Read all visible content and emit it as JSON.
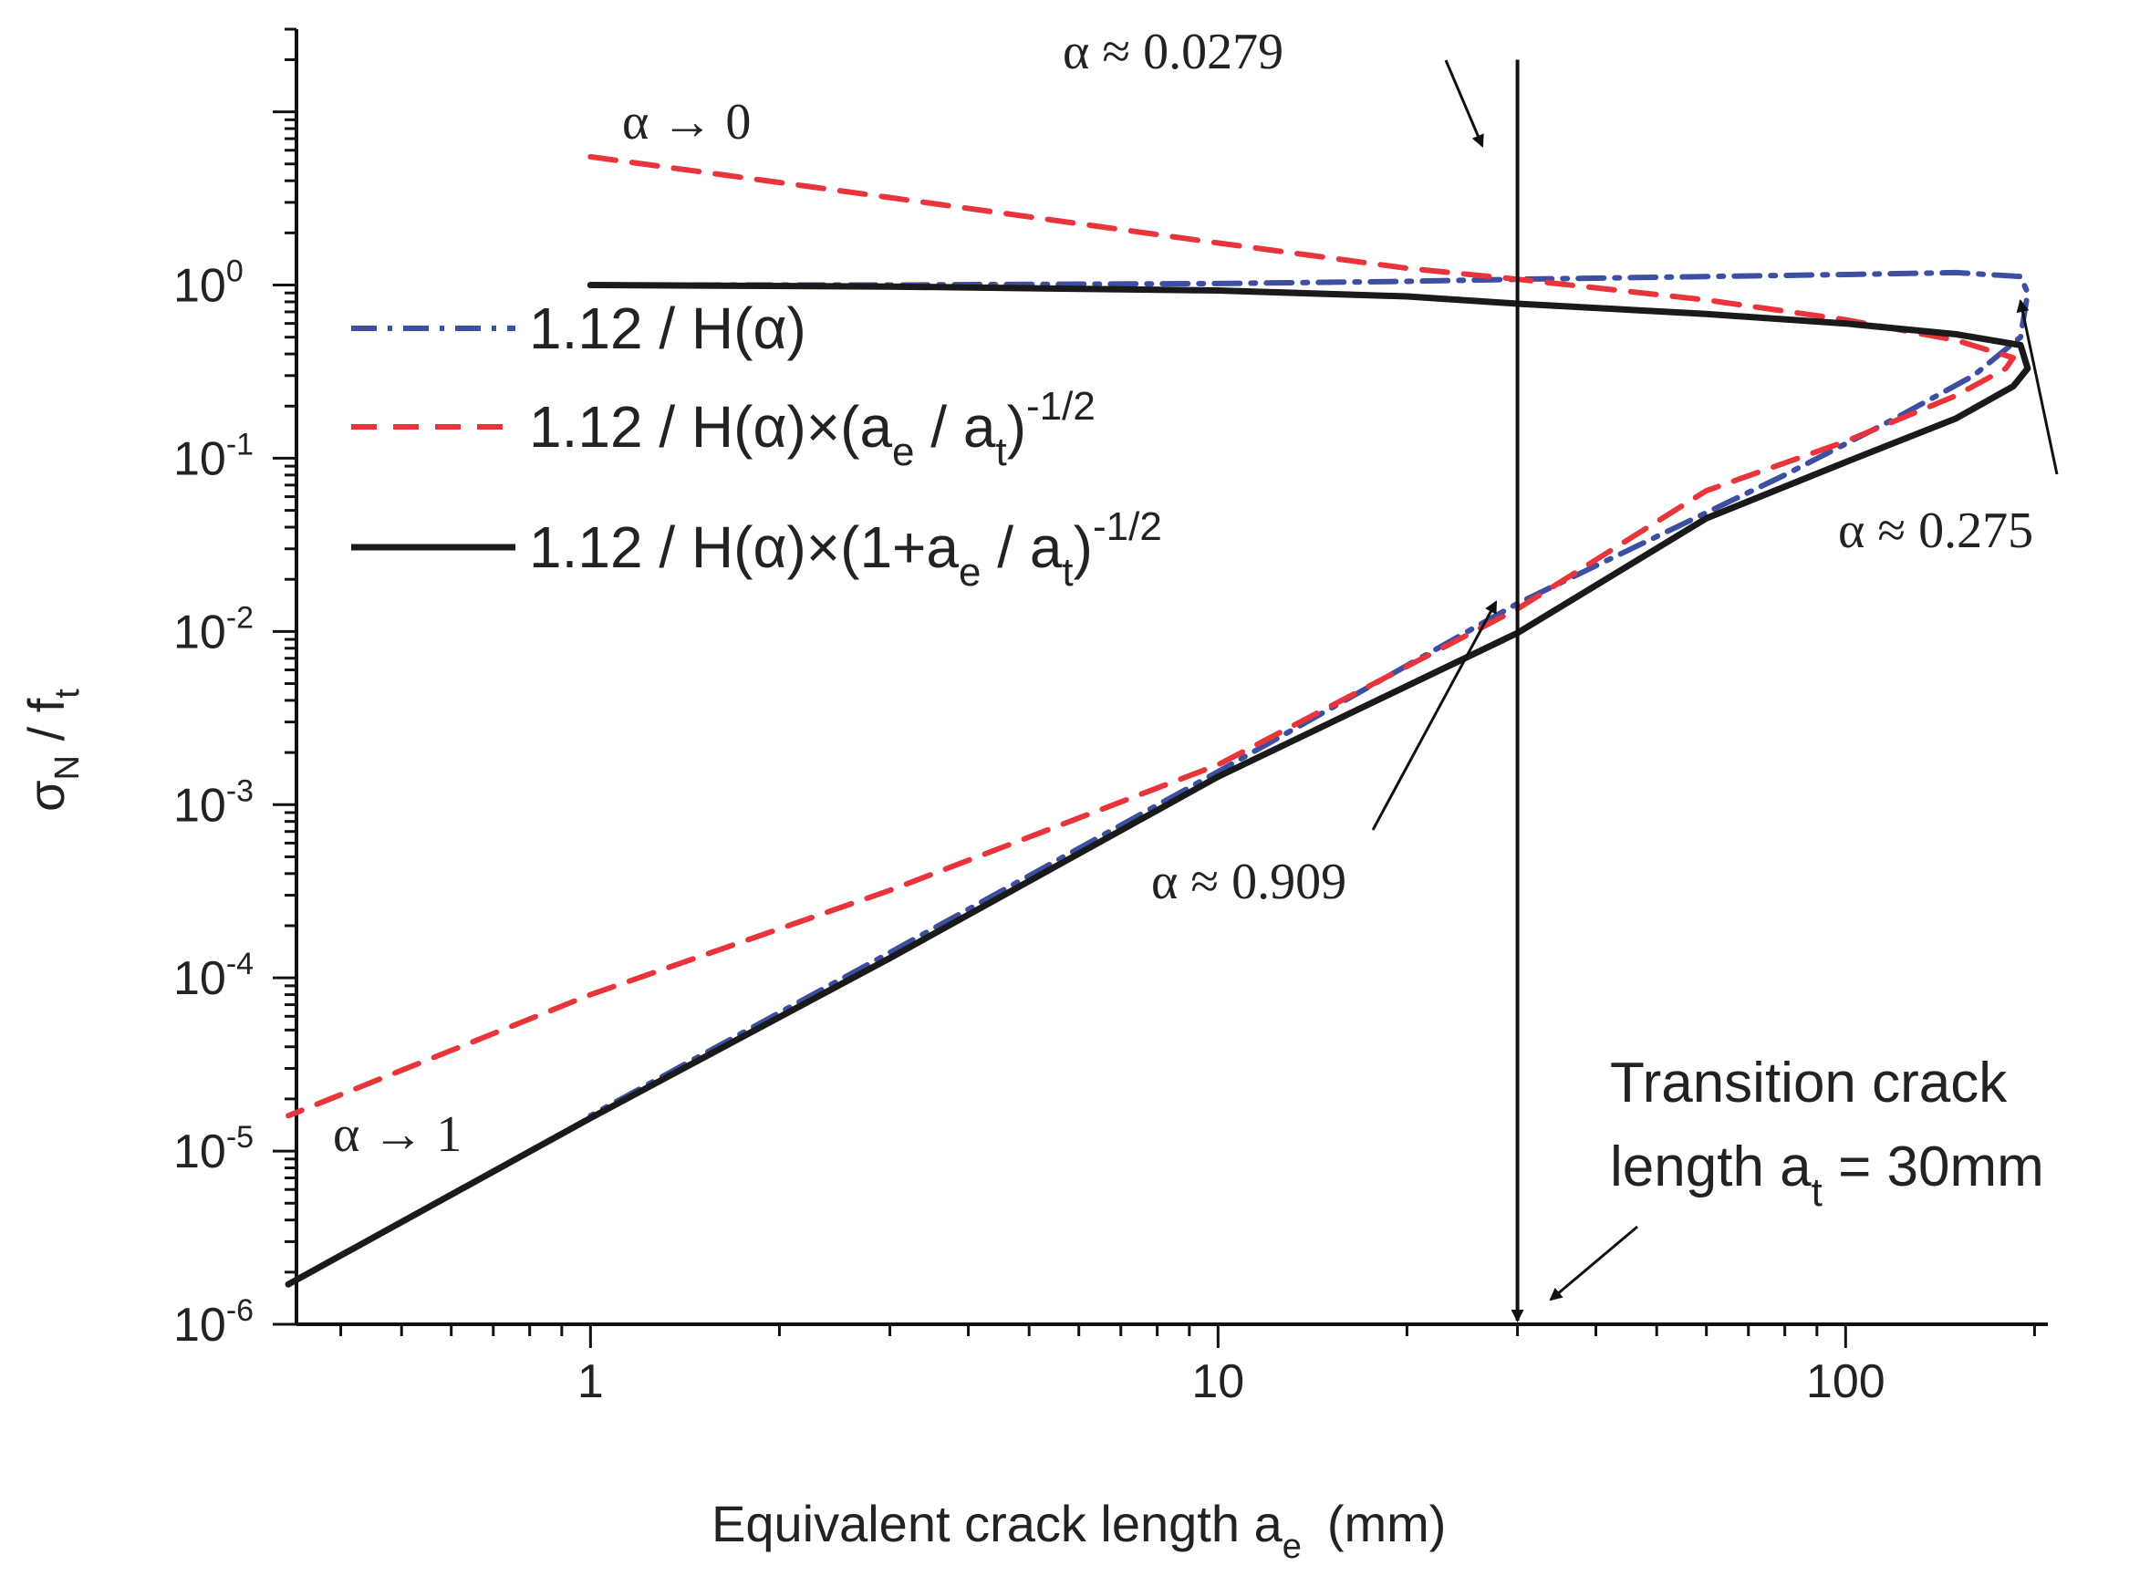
{
  "chart_data": {
    "type": "line",
    "xlabel": "Equivalent crack length a",
    "xlabel_sub": "e",
    "xlabel_unit": "(mm)",
    "ylabel": "σ",
    "ylabel_sub1": "N",
    "ylabel_mid": " / f",
    "ylabel_sub2": "t",
    "x_scale": "log",
    "y_scale": "log",
    "xlim": [
      0.34,
      210
    ],
    "ylim": [
      1e-06,
      30
    ],
    "x_ticks": [
      {
        "value": 1,
        "label": "1"
      },
      {
        "value": 10,
        "label": "10"
      },
      {
        "value": 100,
        "label": "100"
      }
    ],
    "y_ticks": [
      {
        "value": 1,
        "base": "10",
        "exp": "0"
      },
      {
        "value": 0.1,
        "base": "10",
        "exp": "-1"
      },
      {
        "value": 0.01,
        "base": "10",
        "exp": "-2"
      },
      {
        "value": 0.001,
        "base": "10",
        "exp": "-3"
      },
      {
        "value": 0.0001,
        "base": "10",
        "exp": "-4"
      },
      {
        "value": 1e-05,
        "base": "10",
        "exp": "-5"
      },
      {
        "value": 1e-06,
        "base": "10",
        "exp": "-6"
      }
    ],
    "series": [
      {
        "name": "1.12 / H(α)",
        "color": "#3d4fa0",
        "style": "dash-dot",
        "x": [
          1,
          3,
          10,
          20,
          30,
          60,
          100,
          150,
          190,
          195,
          190,
          160,
          120,
          80,
          30,
          10,
          3,
          1
        ],
        "y": [
          1.0,
          1.0,
          1.02,
          1.05,
          1.08,
          1.12,
          1.15,
          1.18,
          1.12,
          0.9,
          0.5,
          0.3,
          0.17,
          0.08,
          0.0145,
          0.00155,
          0.00014,
          1.6e-05
        ]
      },
      {
        "name": "1.12 / H(α)×(a",
        "name_sub1": "e",
        "name_mid": " / a",
        "name_sub2": "t",
        "name_tail": ")",
        "name_sup": "-1/2",
        "color": "#e8343a",
        "style": "dashed",
        "x": [
          1,
          3,
          10,
          20,
          30,
          60,
          100,
          150,
          185,
          180,
          150,
          100,
          60,
          30,
          10,
          3,
          1,
          0.33
        ],
        "y": [
          5.5,
          3.2,
          1.75,
          1.25,
          1.08,
          0.82,
          0.63,
          0.48,
          0.38,
          0.33,
          0.23,
          0.125,
          0.065,
          0.0135,
          0.0017,
          0.00032,
          8e-05,
          1.6e-05
        ]
      },
      {
        "name": "1.12 / H(α)×(1+a",
        "name_sub1": "e",
        "name_mid": " / a",
        "name_sub2": "t",
        "name_tail": ")",
        "name_sup": "-1/2",
        "color": "#1a1a1a",
        "style": "solid",
        "x": [
          1,
          3,
          10,
          20,
          30,
          60,
          100,
          150,
          190,
          195,
          185,
          150,
          100,
          60,
          30,
          10,
          3,
          1,
          0.33
        ],
        "y": [
          1.0,
          0.98,
          0.93,
          0.86,
          0.78,
          0.68,
          0.6,
          0.52,
          0.45,
          0.33,
          0.26,
          0.17,
          0.095,
          0.045,
          0.0098,
          0.00145,
          0.00013,
          1.55e-05,
          1.7e-06
        ]
      }
    ],
    "vertical_line": {
      "x": 30,
      "y_top": 20
    },
    "annotations": [
      {
        "id": "a0",
        "text": "α → 0",
        "x": 1.0,
        "y": 2.6
      },
      {
        "id": "a1",
        "text": "α → 1",
        "x": 0.36,
        "y": 7.8e-06
      },
      {
        "id": "a2",
        "text": "α ≈ 0.0279",
        "x": 14.5,
        "y": 16
      },
      {
        "id": "a3",
        "text": "α ≈ 0.275",
        "x": 140,
        "y": 0.0095
      },
      {
        "id": "a4",
        "text": "α ≈ 0.909",
        "x": 8.0,
        "y": 0.00018
      }
    ],
    "transition_label": {
      "line1": "Transition crack",
      "line2a": "length a",
      "line2_sub": "t",
      "line2b": " = 30mm"
    },
    "legend_position": "top-left",
    "grid": false
  }
}
